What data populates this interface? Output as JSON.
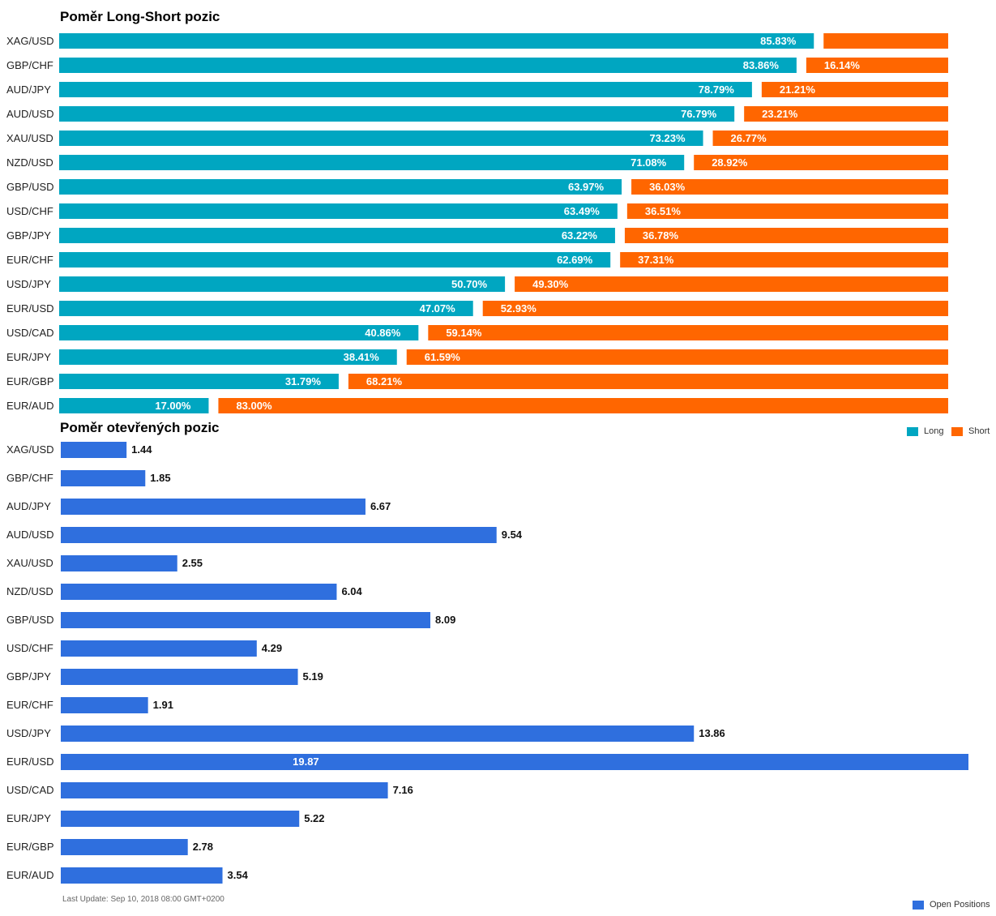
{
  "chart_data": [
    {
      "type": "bar",
      "title": "Poměr Long-Short pozic",
      "stacked": true,
      "orientation": "horizontal",
      "categories": [
        "XAG/USD",
        "GBP/CHF",
        "AUD/JPY",
        "AUD/USD",
        "XAU/USD",
        "NZD/USD",
        "GBP/USD",
        "USD/CHF",
        "GBP/JPY",
        "EUR/CHF",
        "USD/JPY",
        "EUR/USD",
        "USD/CAD",
        "EUR/JPY",
        "EUR/GBP",
        "EUR/AUD"
      ],
      "series": [
        {
          "name": "Long",
          "values": [
            85.83,
            83.86,
            78.79,
            76.79,
            73.23,
            71.08,
            63.97,
            63.49,
            63.22,
            62.69,
            50.7,
            47.07,
            40.86,
            38.41,
            31.79,
            17.0
          ],
          "labels": [
            "85.83%",
            "83.86%",
            "78.79%",
            "76.79%",
            "73.23%",
            "71.08%",
            "63.97%",
            "63.49%",
            "63.22%",
            "62.69%",
            "50.70%",
            "47.07%",
            "40.86%",
            "38.41%",
            "31.79%",
            "17.00%"
          ]
        },
        {
          "name": "Short",
          "values": [
            14.17,
            16.14,
            21.21,
            23.21,
            26.77,
            28.92,
            36.03,
            36.51,
            36.78,
            37.31,
            49.3,
            52.93,
            59.14,
            61.59,
            68.21,
            83.0
          ],
          "labels": [
            "",
            "16.14%",
            "21.21%",
            "23.21%",
            "26.77%",
            "28.92%",
            "36.03%",
            "36.51%",
            "36.78%",
            "37.31%",
            "49.30%",
            "52.93%",
            "59.14%",
            "61.59%",
            "68.21%",
            "83.00%"
          ]
        }
      ],
      "colors": {
        "long": "#00a6c1",
        "short": "#ff6600"
      },
      "legend": "bottom-right"
    },
    {
      "type": "bar",
      "title": "Poměr otevřených pozic",
      "orientation": "horizontal",
      "categories": [
        "XAG/USD",
        "GBP/CHF",
        "AUD/JPY",
        "AUD/USD",
        "XAU/USD",
        "NZD/USD",
        "GBP/USD",
        "USD/CHF",
        "GBP/JPY",
        "EUR/CHF",
        "USD/JPY",
        "EUR/USD",
        "USD/CAD",
        "EUR/JPY",
        "EUR/GBP",
        "EUR/AUD"
      ],
      "series": [
        {
          "name": "Open Positions",
          "values": [
            1.44,
            1.85,
            6.67,
            9.54,
            2.55,
            6.04,
            8.09,
            4.29,
            5.19,
            1.91,
            13.86,
            19.87,
            7.16,
            5.22,
            2.78,
            3.54
          ],
          "labels": [
            "1.44",
            "1.85",
            "6.67",
            "9.54",
            "2.55",
            "6.04",
            "8.09",
            "4.29",
            "5.19",
            "1.91",
            "13.86",
            "19.87",
            "7.16",
            "5.22",
            "2.78",
            "3.54"
          ]
        }
      ],
      "colors": {
        "bar": "#2f6fde"
      },
      "legend": "bottom-right"
    }
  ],
  "legend": {
    "long": "Long",
    "short": "Short",
    "open": "Open Positions"
  },
  "footer": {
    "last_update": "Last Update: Sep 10, 2018 08:00 GMT+0200"
  }
}
